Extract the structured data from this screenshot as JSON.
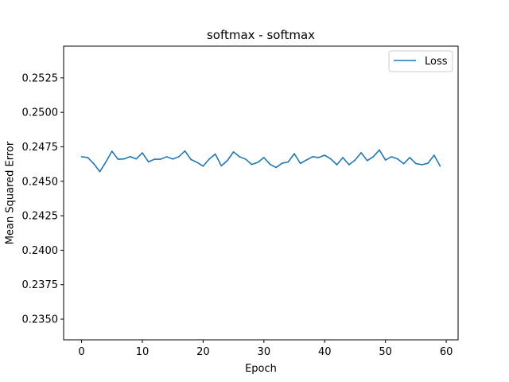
{
  "chart_data": {
    "type": "line",
    "title": "softmax - softmax",
    "xlabel": "Epoch",
    "ylabel": "Mean Squared Error",
    "xlim": [
      -2.95,
      61.95
    ],
    "ylim": [
      0.2335,
      0.2548
    ],
    "x_ticks": [
      0,
      10,
      20,
      30,
      40,
      50,
      60
    ],
    "y_ticks": [
      0.235,
      0.2375,
      0.24,
      0.2425,
      0.245,
      0.2475,
      0.25,
      0.2525
    ],
    "x_tick_labels": [
      "0",
      "10",
      "20",
      "30",
      "40",
      "50",
      "60"
    ],
    "y_tick_labels": [
      "0.2350",
      "0.2375",
      "0.2400",
      "0.2425",
      "0.2450",
      "0.2475",
      "0.2500",
      "0.2525"
    ],
    "grid": false,
    "legend_position": "top-right",
    "series": [
      {
        "name": "Loss",
        "color": "#1f77b4",
        "x": [
          0,
          1,
          2,
          3,
          4,
          5,
          6,
          7,
          8,
          9,
          10,
          11,
          12,
          13,
          14,
          15,
          16,
          17,
          18,
          19,
          20,
          21,
          22,
          23,
          24,
          25,
          26,
          27,
          28,
          29,
          30,
          31,
          32,
          33,
          34,
          35,
          36,
          37,
          38,
          39,
          40,
          41,
          42,
          43,
          44,
          45,
          46,
          47,
          48,
          49,
          50,
          51,
          52,
          53,
          54,
          55,
          56,
          57,
          58,
          59
        ],
        "values": [
          0.24678,
          0.24672,
          0.24628,
          0.2457,
          0.2464,
          0.24718,
          0.2466,
          0.24662,
          0.24679,
          0.24662,
          0.24706,
          0.24641,
          0.2466,
          0.2466,
          0.24678,
          0.24661,
          0.24678,
          0.2472,
          0.24658,
          0.24637,
          0.2461,
          0.24661,
          0.24697,
          0.24612,
          0.24651,
          0.24713,
          0.24678,
          0.2466,
          0.24622,
          0.24637,
          0.24672,
          0.24623,
          0.246,
          0.24631,
          0.2464,
          0.247,
          0.2463,
          0.24654,
          0.24678,
          0.24672,
          0.24689,
          0.24662,
          0.2462,
          0.24672,
          0.2462,
          0.24654,
          0.24707,
          0.2465,
          0.24678,
          0.24727,
          0.24654,
          0.24678,
          0.24662,
          0.24627,
          0.24672,
          0.24629,
          0.2462,
          0.24631,
          0.24689,
          0.2461
        ]
      }
    ]
  }
}
